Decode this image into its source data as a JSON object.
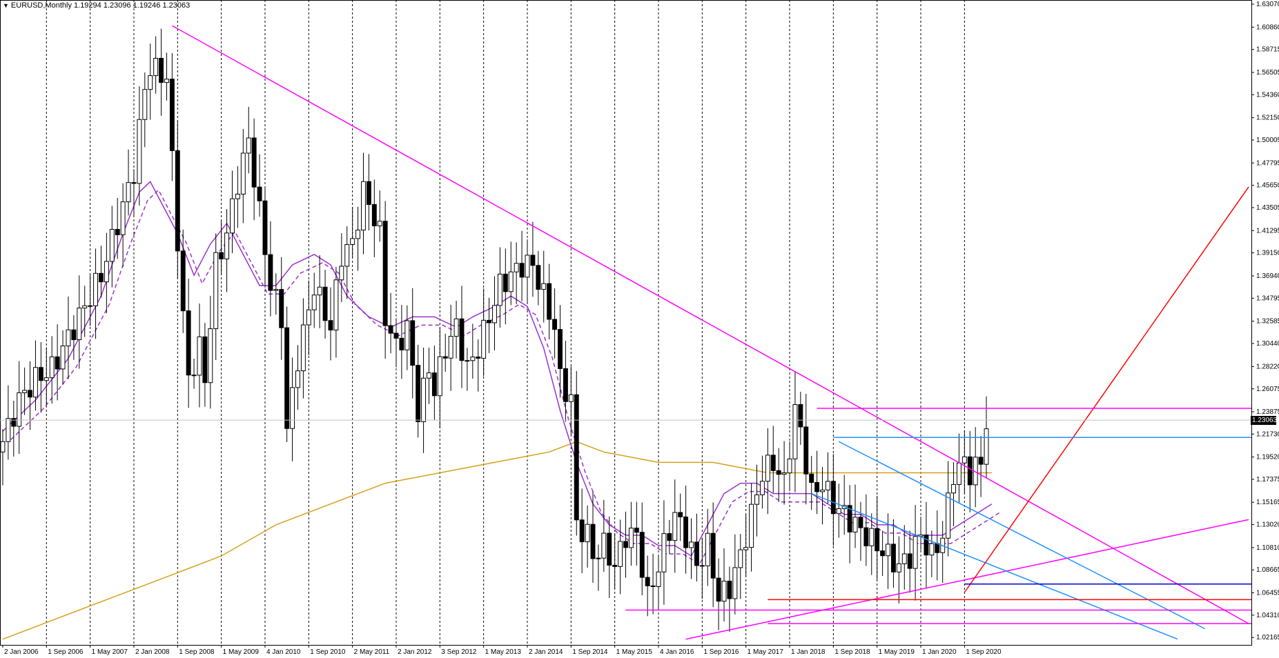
{
  "window": {
    "symbol_title": "EURUSD,Monthly",
    "ohlc_text": "1.19294 1.23096 1.19246 1.23063",
    "current_price": "1.23063"
  },
  "colors": {
    "bull_candle": "#ffffff",
    "bear_candle": "#000000",
    "ma_fast": "#9932CC",
    "ma_slow": "#D4A017",
    "trendline_magenta": "#FF00FF",
    "channel_blue": "#1E90FF",
    "support_red": "#FF0000",
    "support_navy": "#0000CD",
    "grid": "#000000"
  },
  "chart_data": {
    "type": "candlestick",
    "symbol": "EURUSD",
    "timeframe": "Monthly",
    "grid": "vertical dashed",
    "y_axis_ticks": [
      "1.63070",
      "1.60860",
      "1.58715",
      "1.56505",
      "1.54360",
      "1.52150",
      "1.50005",
      "1.47795",
      "1.45650",
      "1.43505",
      "1.41295",
      "1.39150",
      "1.36940",
      "1.34795",
      "1.32585",
      "1.30440",
      "1.28220",
      "1.26075",
      "1.23875",
      "1.21730",
      "1.19520",
      "1.17375",
      "1.15165",
      "1.13020",
      "1.10810",
      "1.08665",
      "1.06455",
      "1.04310",
      "1.02165"
    ],
    "x_axis_ticks": [
      "2 Jan 2006",
      "1 Sep 2006",
      "1 May 2007",
      "2 Jan 2008",
      "1 Sep 2008",
      "1 May 2009",
      "4 Jan 2010",
      "1 Sep 2010",
      "2 May 2011",
      "2 Jan 2012",
      "3 Sep 2012",
      "1 May 2013",
      "2 Jan 2014",
      "1 Sep 2014",
      "1 May 2015",
      "4 Jan 2016",
      "1 Sep 2016",
      "1 May 2017",
      "1 Jan 2018",
      "1 Sep 2018",
      "1 May 2019",
      "1 Jan 2020",
      "1 Sep 2020"
    ],
    "ylim": [
      1.0145,
      1.6347
    ],
    "xlim_months": [
      -0.5,
      228.5
    ],
    "price_path": [
      [
        0,
        1.21
      ],
      [
        3,
        1.25
      ],
      [
        6,
        1.27
      ],
      [
        9,
        1.28
      ],
      [
        12,
        1.31
      ],
      [
        15,
        1.34
      ],
      [
        18,
        1.37
      ],
      [
        21,
        1.42
      ],
      [
        24,
        1.47
      ],
      [
        26,
        1.55
      ],
      [
        27,
        1.57
      ],
      [
        30,
        1.56
      ],
      [
        31,
        1.48
      ],
      [
        33,
        1.33
      ],
      [
        34,
        1.27
      ],
      [
        36,
        1.3
      ],
      [
        37,
        1.27
      ],
      [
        39,
        1.38
      ],
      [
        41,
        1.41
      ],
      [
        43,
        1.46
      ],
      [
        45,
        1.5
      ],
      [
        47,
        1.43
      ],
      [
        49,
        1.36
      ],
      [
        51,
        1.33
      ],
      [
        52,
        1.22
      ],
      [
        54,
        1.29
      ],
      [
        57,
        1.36
      ],
      [
        60,
        1.32
      ],
      [
        62,
        1.39
      ],
      [
        64,
        1.4
      ],
      [
        66,
        1.45
      ],
      [
        67,
        1.44
      ],
      [
        69,
        1.41
      ],
      [
        70,
        1.33
      ],
      [
        72,
        1.3
      ],
      [
        74,
        1.32
      ],
      [
        76,
        1.24
      ],
      [
        78,
        1.28
      ],
      [
        79,
        1.26
      ],
      [
        81,
        1.3
      ],
      [
        83,
        1.32
      ],
      [
        85,
        1.28
      ],
      [
        87,
        1.3
      ],
      [
        89,
        1.33
      ],
      [
        91,
        1.36
      ],
      [
        93,
        1.37
      ],
      [
        95,
        1.38
      ],
      [
        97,
        1.38
      ],
      [
        99,
        1.35
      ],
      [
        101,
        1.32
      ],
      [
        102,
        1.27
      ],
      [
        104,
        1.25
      ],
      [
        105,
        1.13
      ],
      [
        107,
        1.12
      ],
      [
        108,
        1.1
      ],
      [
        110,
        1.11
      ],
      [
        112,
        1.09
      ],
      [
        114,
        1.12
      ],
      [
        116,
        1.12
      ],
      [
        118,
        1.06
      ],
      [
        120,
        1.09
      ],
      [
        121,
        1.11
      ],
      [
        123,
        1.14
      ],
      [
        125,
        1.12
      ],
      [
        127,
        1.09
      ],
      [
        129,
        1.11
      ],
      [
        131,
        1.06
      ],
      [
        133,
        1.07
      ],
      [
        135,
        1.1
      ],
      [
        137,
        1.14
      ],
      [
        139,
        1.18
      ],
      [
        141,
        1.19
      ],
      [
        143,
        1.17
      ],
      [
        145,
        1.24
      ],
      [
        146,
        1.22
      ],
      [
        148,
        1.16
      ],
      [
        150,
        1.17
      ],
      [
        152,
        1.15
      ],
      [
        154,
        1.14
      ],
      [
        156,
        1.13
      ],
      [
        158,
        1.12
      ],
      [
        160,
        1.11
      ],
      [
        162,
        1.1
      ],
      [
        164,
        1.09
      ],
      [
        166,
        1.1
      ],
      [
        168,
        1.12
      ],
      [
        170,
        1.1
      ],
      [
        172,
        1.12
      ],
      [
        174,
        1.18
      ],
      [
        176,
        1.19
      ],
      [
        177,
        1.18
      ],
      [
        179,
        1.19
      ],
      [
        180,
        1.23
      ]
    ],
    "ma_fast_path": [
      [
        0,
        1.22
      ],
      [
        6,
        1.25
      ],
      [
        12,
        1.29
      ],
      [
        18,
        1.35
      ],
      [
        22,
        1.41
      ],
      [
        25,
        1.45
      ],
      [
        27,
        1.46
      ],
      [
        29,
        1.44
      ],
      [
        32,
        1.41
      ],
      [
        35,
        1.37
      ],
      [
        38,
        1.4
      ],
      [
        41,
        1.42
      ],
      [
        44,
        1.39
      ],
      [
        47,
        1.36
      ],
      [
        50,
        1.36
      ],
      [
        53,
        1.38
      ],
      [
        57,
        1.39
      ],
      [
        60,
        1.38
      ],
      [
        63,
        1.35
      ],
      [
        67,
        1.33
      ],
      [
        71,
        1.32
      ],
      [
        75,
        1.33
      ],
      [
        79,
        1.33
      ],
      [
        83,
        1.32
      ],
      [
        86,
        1.33
      ],
      [
        90,
        1.34
      ],
      [
        93,
        1.35
      ],
      [
        96,
        1.34
      ],
      [
        99,
        1.3
      ],
      [
        102,
        1.24
      ],
      [
        105,
        1.19
      ],
      [
        108,
        1.15
      ],
      [
        111,
        1.13
      ],
      [
        114,
        1.12
      ],
      [
        117,
        1.12
      ],
      [
        120,
        1.11
      ],
      [
        123,
        1.11
      ],
      [
        126,
        1.1
      ],
      [
        129,
        1.13
      ],
      [
        132,
        1.16
      ],
      [
        135,
        1.17
      ],
      [
        138,
        1.17
      ],
      [
        141,
        1.16
      ],
      [
        144,
        1.16
      ],
      [
        148,
        1.16
      ],
      [
        151,
        1.15
      ],
      [
        154,
        1.14
      ],
      [
        157,
        1.14
      ],
      [
        160,
        1.13
      ],
      [
        163,
        1.13
      ],
      [
        166,
        1.12
      ],
      [
        169,
        1.12
      ],
      [
        172,
        1.12
      ],
      [
        175,
        1.13
      ],
      [
        178,
        1.14
      ],
      [
        181,
        1.15
      ]
    ],
    "ma_slow_path": [
      [
        0,
        1.02
      ],
      [
        10,
        1.04
      ],
      [
        20,
        1.06
      ],
      [
        30,
        1.08
      ],
      [
        40,
        1.1
      ],
      [
        50,
        1.13
      ],
      [
        60,
        1.15
      ],
      [
        70,
        1.17
      ],
      [
        80,
        1.18
      ],
      [
        90,
        1.19
      ],
      [
        100,
        1.2
      ],
      [
        105,
        1.21
      ],
      [
        110,
        1.2
      ],
      [
        120,
        1.19
      ],
      [
        130,
        1.19
      ],
      [
        140,
        1.18
      ],
      [
        150,
        1.18
      ],
      [
        160,
        1.18
      ],
      [
        170,
        1.18
      ],
      [
        181,
        1.18
      ]
    ],
    "trendlines": [
      {
        "color": "magenta",
        "from": [
          31,
          1.61
        ],
        "to": [
          228,
          1.035
        ]
      },
      {
        "color": "magenta",
        "from": [
          125,
          1.02
        ],
        "to": [
          228,
          1.135
        ]
      },
      {
        "color": "blue",
        "from": [
          153,
          1.21
        ],
        "to": [
          220,
          1.03
        ]
      },
      {
        "color": "blue",
        "from": [
          148,
          1.16
        ],
        "to": [
          215,
          1.02
        ]
      },
      {
        "color": "red",
        "from": [
          176,
          1.065
        ],
        "to": [
          228,
          1.455
        ]
      }
    ],
    "horizontal_levels": [
      {
        "color": "magenta",
        "value": 1.242,
        "from_month": 149
      },
      {
        "color": "blue",
        "value": 1.214,
        "from_month": 152
      },
      {
        "color": "navy",
        "value": 1.073,
        "from_month": 176
      },
      {
        "color": "red",
        "value": 1.058,
        "from_month": 140
      },
      {
        "color": "magenta",
        "value": 1.048,
        "from_month": 114
      },
      {
        "color": "magenta",
        "value": 1.035,
        "from_month": 140
      }
    ]
  }
}
